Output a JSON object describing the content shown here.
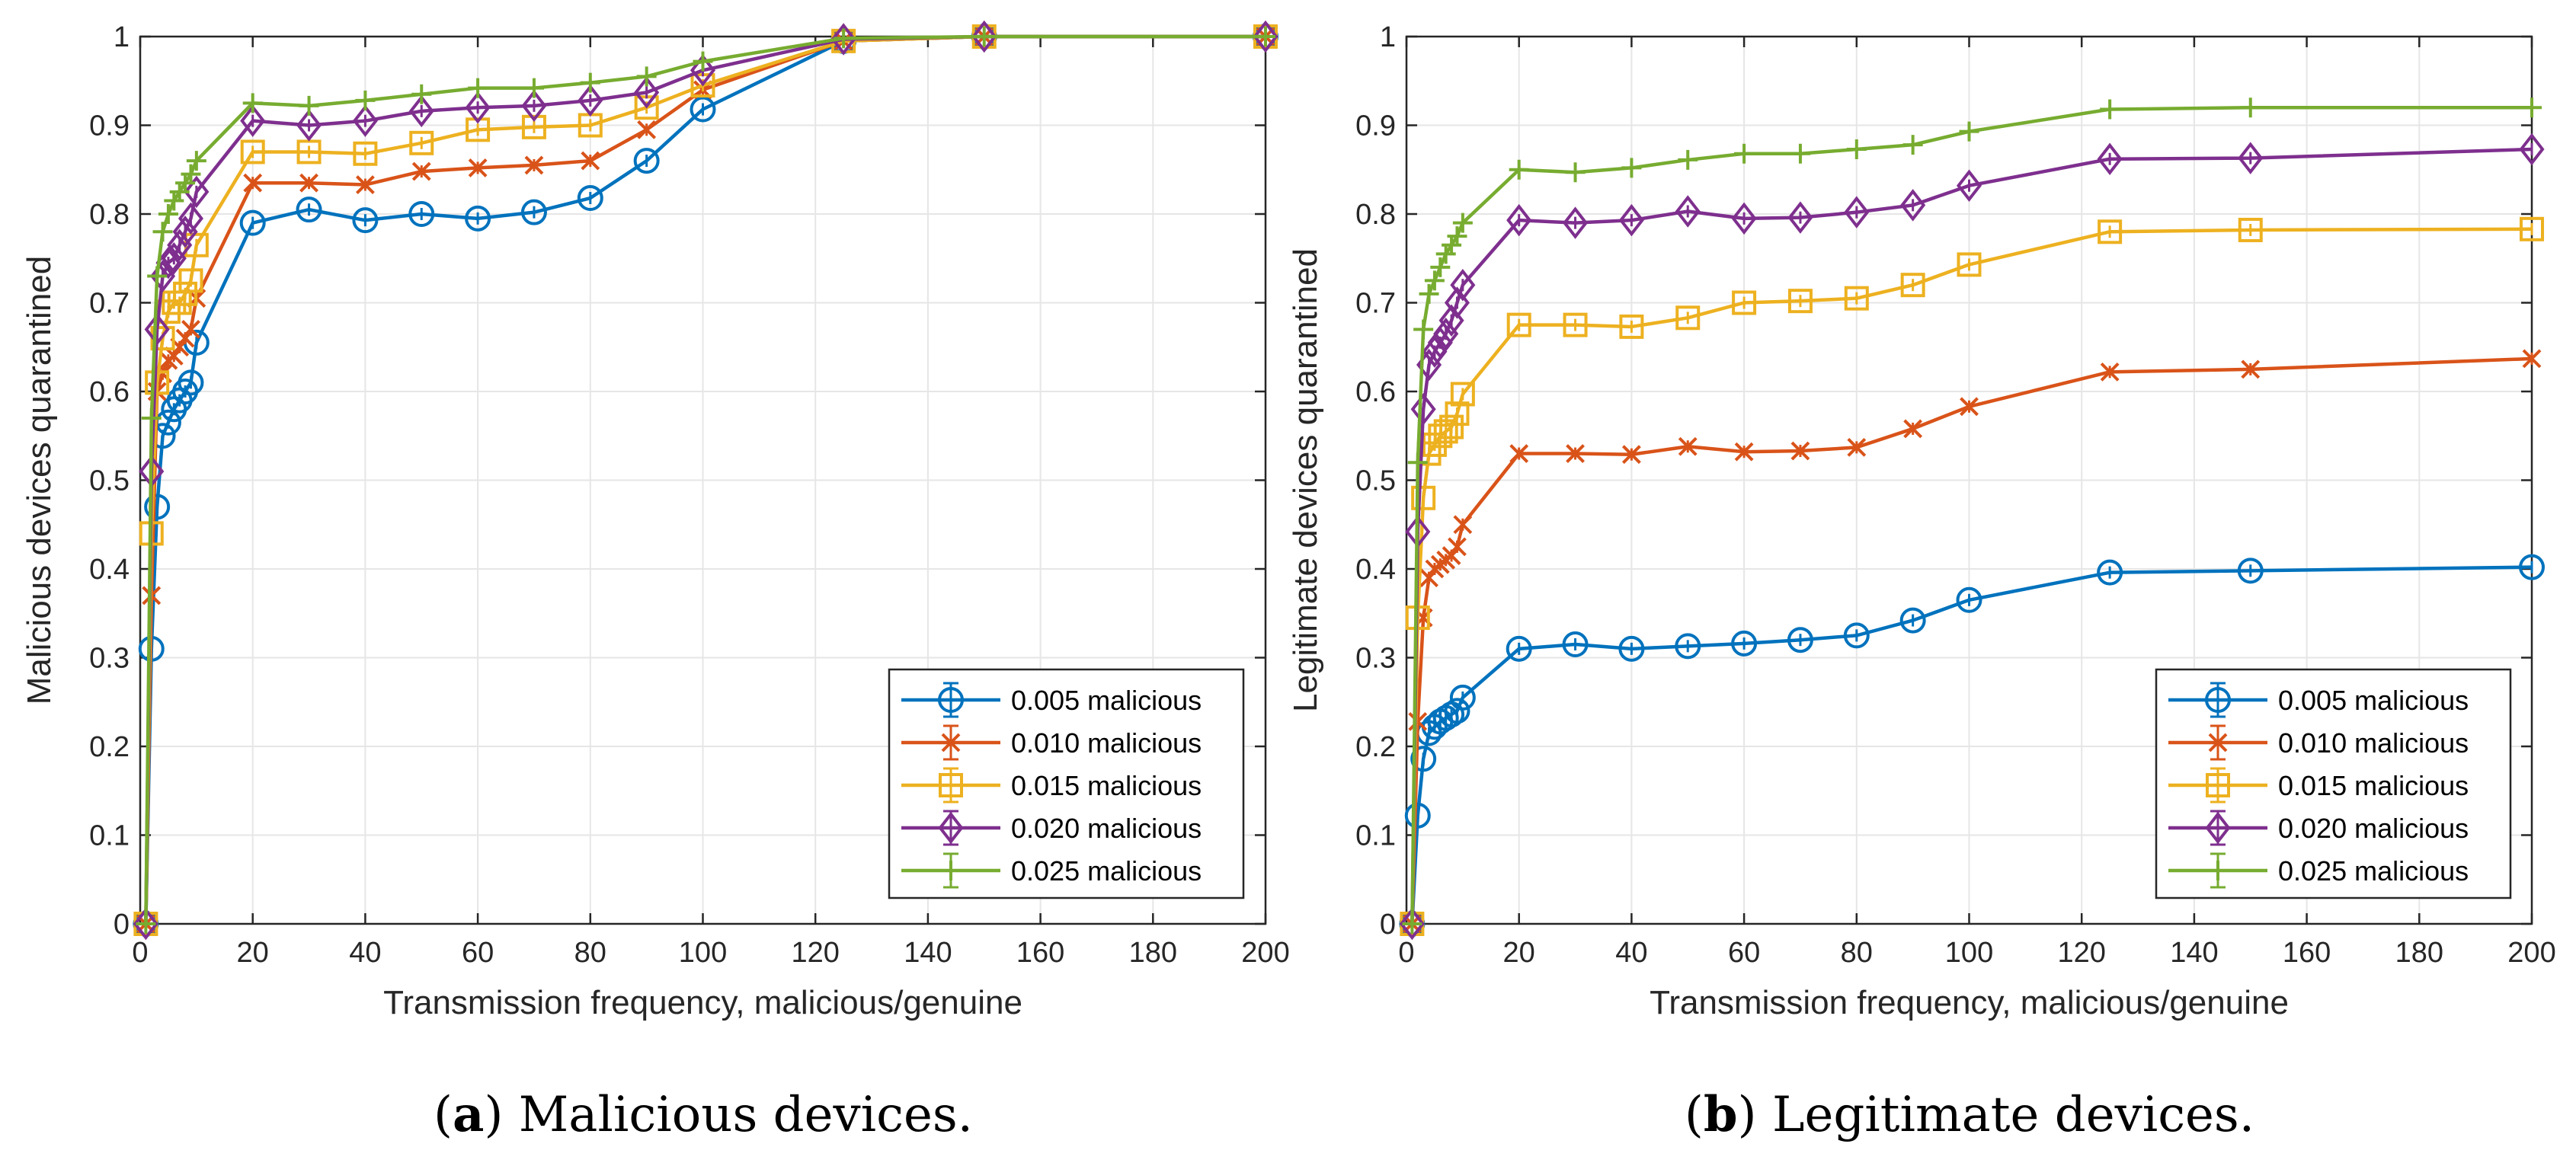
{
  "chart_data": [
    {
      "type": "line",
      "panel": "a",
      "caption_label": "a",
      "caption_text": " Malicious devices.",
      "xlabel": "Transmission frequency, malicious/genuine",
      "ylabel": "Malicious devices quarantined",
      "xlim": [
        0,
        200
      ],
      "ylim": [
        0,
        1
      ],
      "xticks": [
        0,
        20,
        40,
        60,
        80,
        100,
        120,
        140,
        160,
        180,
        200
      ],
      "yticks": [
        0,
        0.1,
        0.2,
        0.3,
        0.4,
        0.5,
        0.6,
        0.7,
        0.8,
        0.9,
        1
      ],
      "ytick_labels": [
        "0",
        "0.1",
        "0.2",
        "0.3",
        "0.4",
        "0.5",
        "0.6",
        "0.7",
        "0.8",
        "0.9",
        "1"
      ],
      "grid": true,
      "legend_position": "bottom-right",
      "x": [
        1,
        2,
        3,
        4,
        5,
        6,
        7,
        8,
        9,
        10,
        20,
        30,
        40,
        50,
        60,
        70,
        80,
        90,
        100,
        125,
        150,
        200
      ],
      "series": [
        {
          "name": "0.005 malicious",
          "color": "#0072BD",
          "marker": "circle",
          "values": [
            0,
            0.31,
            0.47,
            0.55,
            0.565,
            0.58,
            0.59,
            0.6,
            0.61,
            0.655,
            0.79,
            0.805,
            0.793,
            0.8,
            0.795,
            0.802,
            0.818,
            0.86,
            0.918,
            0.995,
            1,
            1
          ]
        },
        {
          "name": "0.010 malicious",
          "color": "#D95319",
          "marker": "x",
          "values": [
            0,
            0.37,
            0.6,
            0.62,
            0.635,
            0.64,
            0.65,
            0.66,
            0.67,
            0.705,
            0.835,
            0.835,
            0.833,
            0.848,
            0.852,
            0.855,
            0.86,
            0.895,
            0.94,
            0.995,
            1,
            1
          ]
        },
        {
          "name": "0.015 malicious",
          "color": "#EDB120",
          "marker": "square",
          "values": [
            0,
            0.44,
            0.61,
            0.66,
            0.69,
            0.7,
            0.7,
            0.71,
            0.725,
            0.765,
            0.87,
            0.87,
            0.868,
            0.88,
            0.895,
            0.898,
            0.9,
            0.92,
            0.945,
            0.995,
            1,
            1
          ]
        },
        {
          "name": "0.020 malicious",
          "color": "#7E2F8E",
          "marker": "diamond",
          "values": [
            0,
            0.51,
            0.67,
            0.73,
            0.745,
            0.75,
            0.765,
            0.78,
            0.795,
            0.825,
            0.905,
            0.9,
            0.905,
            0.916,
            0.92,
            0.922,
            0.928,
            0.937,
            0.962,
            0.997,
            1,
            1
          ]
        },
        {
          "name": "0.025 malicious",
          "color": "#77AC30",
          "marker": "plus",
          "values": [
            0,
            0.57,
            0.73,
            0.78,
            0.8,
            0.815,
            0.825,
            0.835,
            0.845,
            0.86,
            0.925,
            0.922,
            0.928,
            0.935,
            0.942,
            0.942,
            0.948,
            0.955,
            0.972,
            0.998,
            1,
            1
          ]
        }
      ]
    },
    {
      "type": "line",
      "panel": "b",
      "caption_label": "b",
      "caption_text": " Legitimate devices.",
      "xlabel": "Transmission frequency, malicious/genuine",
      "ylabel": "Legitimate devices quarantined",
      "xlim": [
        0,
        200
      ],
      "ylim": [
        0,
        1
      ],
      "xticks": [
        0,
        20,
        40,
        60,
        80,
        100,
        120,
        140,
        160,
        180,
        200
      ],
      "yticks": [
        0,
        0.1,
        0.2,
        0.3,
        0.4,
        0.5,
        0.6,
        0.7,
        0.8,
        0.9,
        1
      ],
      "ytick_labels": [
        "0",
        "0.1",
        "0.2",
        "0.3",
        "0.4",
        "0.5",
        "0.6",
        "0.7",
        "0.8",
        "0.9",
        "1"
      ],
      "grid": true,
      "legend_position": "bottom-right",
      "x": [
        1,
        2,
        3,
        4,
        5,
        6,
        7,
        8,
        9,
        10,
        20,
        30,
        40,
        50,
        60,
        70,
        80,
        90,
        100,
        125,
        150,
        200
      ],
      "series": [
        {
          "name": "0.005 malicious",
          "color": "#0072BD",
          "marker": "circle",
          "values": [
            0,
            0.122,
            0.186,
            0.215,
            0.222,
            0.228,
            0.232,
            0.236,
            0.24,
            0.255,
            0.31,
            0.315,
            0.31,
            0.313,
            0.316,
            0.32,
            0.325,
            0.342,
            0.365,
            0.396,
            0.398,
            0.402
          ]
        },
        {
          "name": "0.010 malicious",
          "color": "#D95319",
          "marker": "x",
          "values": [
            0,
            0.228,
            0.345,
            0.39,
            0.4,
            0.405,
            0.41,
            0.415,
            0.425,
            0.45,
            0.53,
            0.53,
            0.529,
            0.538,
            0.532,
            0.533,
            0.537,
            0.558,
            0.583,
            0.622,
            0.625,
            0.637
          ]
        },
        {
          "name": "0.015 malicious",
          "color": "#EDB120",
          "marker": "square",
          "values": [
            0,
            0.345,
            0.48,
            0.53,
            0.54,
            0.55,
            0.555,
            0.56,
            0.575,
            0.597,
            0.675,
            0.675,
            0.673,
            0.683,
            0.7,
            0.702,
            0.705,
            0.72,
            0.743,
            0.78,
            0.782,
            0.783
          ]
        },
        {
          "name": "0.020 malicious",
          "color": "#7E2F8E",
          "marker": "diamond",
          "values": [
            0,
            0.442,
            0.58,
            0.63,
            0.645,
            0.655,
            0.665,
            0.68,
            0.7,
            0.72,
            0.793,
            0.79,
            0.793,
            0.803,
            0.795,
            0.796,
            0.802,
            0.81,
            0.832,
            0.862,
            0.863,
            0.873
          ]
        },
        {
          "name": "0.025 malicious",
          "color": "#77AC30",
          "marker": "plus",
          "values": [
            0,
            0.52,
            0.67,
            0.71,
            0.725,
            0.74,
            0.755,
            0.765,
            0.775,
            0.79,
            0.85,
            0.847,
            0.852,
            0.861,
            0.868,
            0.868,
            0.873,
            0.878,
            0.893,
            0.918,
            0.92,
            0.92
          ]
        }
      ]
    }
  ]
}
